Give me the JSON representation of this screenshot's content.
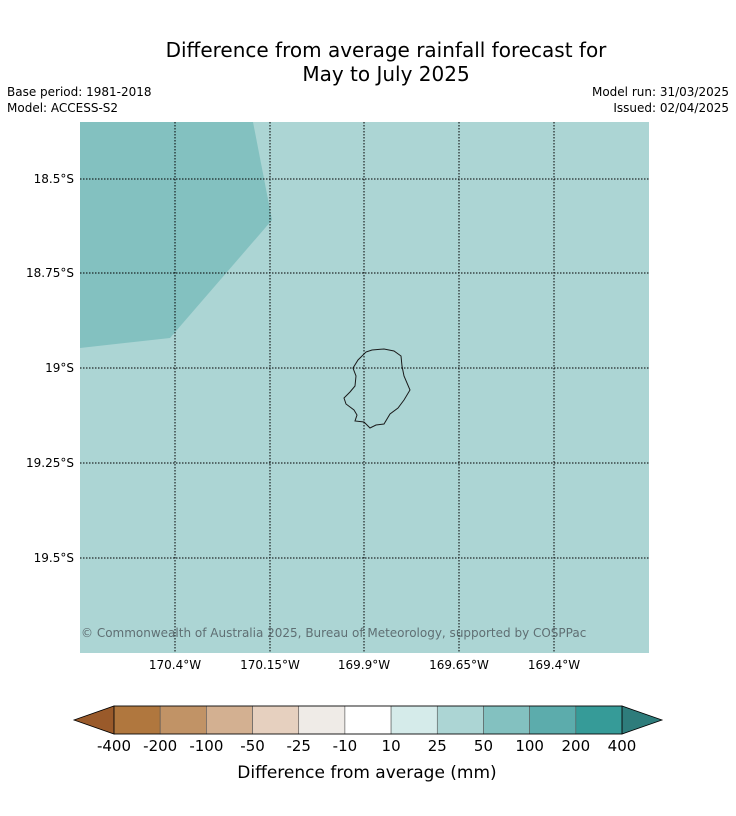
{
  "title": {
    "line1": "Difference from average rainfall forecast for",
    "line2": "May to July 2025"
  },
  "meta": {
    "base_period": "Base period: 1981-2018",
    "model": "Model: ACCESS-S2",
    "model_run": "Model run: 31/03/2025",
    "issued": "Issued: 02/04/2025"
  },
  "map": {
    "copyright": "© Commonwealth of Australia 2025, Bureau of Meteorology, supported by COSPPac",
    "lat_ticks": [
      "18.5°S",
      "18.75°S",
      "19°S",
      "19.25°S",
      "19.5°S"
    ],
    "lon_ticks": [
      "170.4°W",
      "170.15°W",
      "169.9°W",
      "169.65°W",
      "169.4°W"
    ],
    "region_fills": {
      "main": "25 to 50 mm",
      "northwest": "50 to 100 mm"
    }
  },
  "colorbar": {
    "title": "Difference from average (mm)",
    "labels": [
      "-400",
      "-200",
      "-100",
      "-50",
      "-25",
      "-10",
      "10",
      "25",
      "50",
      "100",
      "200",
      "400"
    ],
    "colors": [
      "#9a5a2a",
      "#b0773e",
      "#c19366",
      "#d3b091",
      "#e6d0bf",
      "#efebe7",
      "#ffffff",
      "#d5ebea",
      "#acd5d4",
      "#83c1c0",
      "#5cacac",
      "#369b98",
      "#2e7c7b"
    ]
  }
}
